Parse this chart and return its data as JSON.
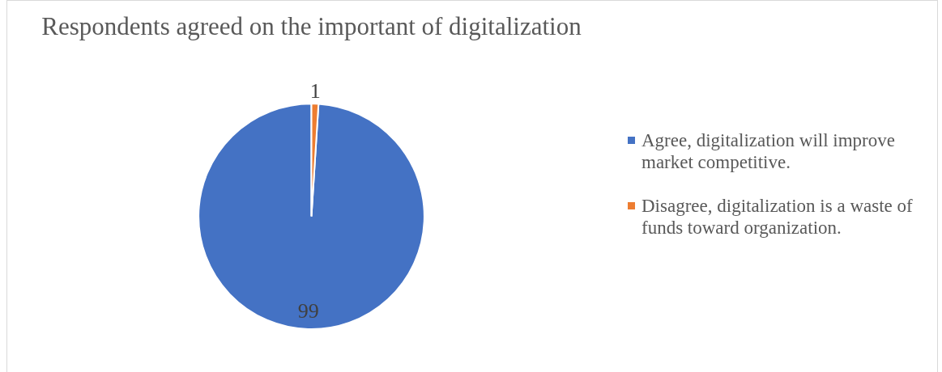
{
  "chart_data": {
    "type": "pie",
    "title": "Respondents agreed on the important of digitalization",
    "categories": [
      "Agree, digitalization will improve market competitive.",
      "Disagree, digitalization is a waste of funds toward organization."
    ],
    "values": [
      99,
      1
    ],
    "colors": [
      "#4472c4",
      "#ed7d31"
    ],
    "data_labels": true,
    "legend": "right"
  }
}
